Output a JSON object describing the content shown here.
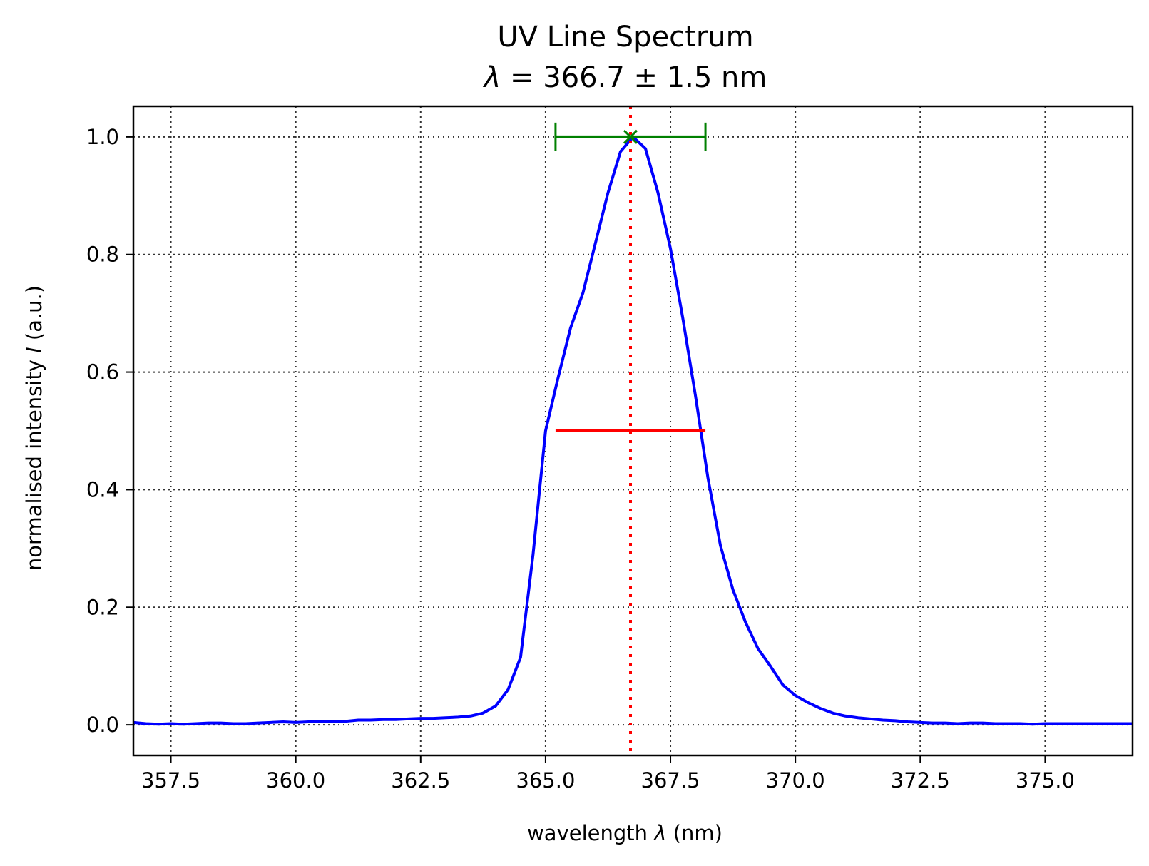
{
  "chart_data": {
    "type": "line",
    "title": "UV Line Spectrum",
    "subtitle": {
      "symbol": "λ",
      "text": " = 366.7 ± 1.5 nm"
    },
    "xlabel": {
      "prefix": "wavelength ",
      "symbol": "λ",
      "suffix": " (nm)"
    },
    "ylabel": {
      "prefix": "normalised intensity ",
      "symbol": "I",
      "suffix": " (a.u.)"
    },
    "xlim": [
      356.75,
      376.75
    ],
    "ylim": [
      -0.052,
      1.052
    ],
    "x_ticks": [
      357.5,
      360.0,
      362.5,
      365.0,
      367.5,
      370.0,
      372.5,
      375.0
    ],
    "x_tick_labels": [
      "357.5",
      "360.0",
      "362.5",
      "365.0",
      "367.5",
      "370.0",
      "372.5",
      "375.0"
    ],
    "y_ticks": [
      0.0,
      0.2,
      0.4,
      0.6,
      0.8,
      1.0
    ],
    "y_tick_labels": [
      "0.0",
      "0.2",
      "0.4",
      "0.6",
      "0.8",
      "1.0"
    ],
    "grid": true,
    "legend": "none",
    "series": [
      {
        "color": "#0000ff",
        "x": [
          356.75,
          357.0,
          357.25,
          357.5,
          357.75,
          358.0,
          358.25,
          358.5,
          358.75,
          359.0,
          359.25,
          359.5,
          359.75,
          360.0,
          360.25,
          360.5,
          360.75,
          361.0,
          361.25,
          361.5,
          361.75,
          362.0,
          362.25,
          362.5,
          362.75,
          363.0,
          363.25,
          363.5,
          363.75,
          364.0,
          364.25,
          364.5,
          364.75,
          365.0,
          365.25,
          365.5,
          365.75,
          366.0,
          366.25,
          366.5,
          366.75,
          367.0,
          367.25,
          367.5,
          367.75,
          368.0,
          368.25,
          368.5,
          368.75,
          369.0,
          369.25,
          369.5,
          369.75,
          370.0,
          370.25,
          370.5,
          370.75,
          371.0,
          371.25,
          371.5,
          371.75,
          372.0,
          372.25,
          372.5,
          372.75,
          373.0,
          373.25,
          373.5,
          373.75,
          374.0,
          374.25,
          374.5,
          374.75,
          375.0,
          375.25,
          375.5,
          375.75,
          376.0,
          376.25,
          376.5,
          376.75
        ],
        "y": [
          0.004,
          0.002,
          0.001,
          0.002,
          0.001,
          0.002,
          0.003,
          0.003,
          0.002,
          0.002,
          0.003,
          0.004,
          0.005,
          0.004,
          0.005,
          0.005,
          0.006,
          0.006,
          0.008,
          0.008,
          0.009,
          0.009,
          0.01,
          0.011,
          0.011,
          0.012,
          0.013,
          0.015,
          0.02,
          0.032,
          0.06,
          0.115,
          0.29,
          0.5,
          0.59,
          0.675,
          0.735,
          0.82,
          0.905,
          0.975,
          1.0,
          0.98,
          0.905,
          0.81,
          0.69,
          0.56,
          0.42,
          0.305,
          0.23,
          0.175,
          0.13,
          0.1,
          0.068,
          0.05,
          0.038,
          0.028,
          0.02,
          0.015,
          0.012,
          0.01,
          0.008,
          0.007,
          0.005,
          0.004,
          0.003,
          0.003,
          0.002,
          0.003,
          0.003,
          0.002,
          0.002,
          0.002,
          0.001,
          0.002,
          0.002,
          0.002,
          0.002,
          0.002,
          0.002,
          0.002,
          0.002
        ]
      }
    ],
    "peak": {
      "x": 366.7,
      "y": 1.0,
      "marker": "x",
      "color": "#008000",
      "error_x": 1.5
    },
    "fwhm": {
      "x_start": 365.2,
      "x_end": 368.2,
      "y": 0.5,
      "color": "#ff0000"
    },
    "center_line": {
      "x": 366.7,
      "style": "dotted",
      "color": "#ff0000"
    }
  }
}
